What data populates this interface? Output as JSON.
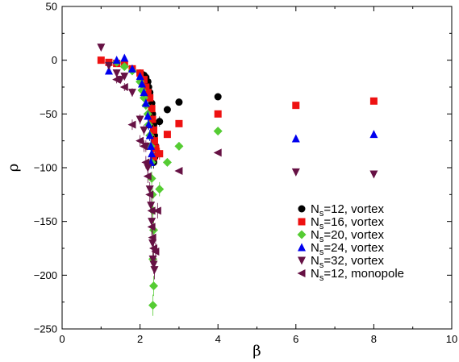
{
  "chart_data": {
    "type": "scatter",
    "xlabel": "β",
    "ylabel": "ρ",
    "xlim": [
      0,
      10
    ],
    "ylim": [
      -250,
      50
    ],
    "xticks": [
      0,
      2,
      4,
      6,
      8,
      10
    ],
    "yticks": [
      50,
      0,
      -50,
      -100,
      -150,
      -200,
      -250
    ],
    "xtick_labels": [
      "0",
      "2",
      "4",
      "6",
      "8",
      "10"
    ],
    "ytick_labels": [
      "50",
      "0",
      "−50",
      "−100",
      "−150",
      "−200",
      "−250"
    ],
    "legend_position": "right-middle",
    "series": [
      {
        "name": "N_s=12, vortex",
        "legend_label": {
          "main": "N",
          "sub": "s",
          "rest": "=12, vortex"
        },
        "marker": "circle",
        "color": "#000000",
        "points": [
          [
            2.0,
            -12
          ],
          [
            2.05,
            -13
          ],
          [
            2.1,
            -14
          ],
          [
            2.15,
            -16
          ],
          [
            2.2,
            -20
          ],
          [
            2.22,
            -25
          ],
          [
            2.25,
            -30
          ],
          [
            2.3,
            -40
          ],
          [
            2.32,
            -50
          ],
          [
            2.35,
            -60
          ],
          [
            2.37,
            -70
          ],
          [
            2.4,
            -80
          ],
          [
            2.38,
            -90
          ],
          [
            2.35,
            -95
          ],
          [
            2.5,
            -57
          ],
          [
            2.7,
            -46
          ],
          [
            3.0,
            -39
          ],
          [
            4.0,
            -34
          ]
        ]
      },
      {
        "name": "N_s=16, vortex",
        "legend_label": {
          "main": "N",
          "sub": "s",
          "rest": "=16, vortex"
        },
        "marker": "square",
        "color": "#ee1111",
        "points": [
          [
            1.0,
            0
          ],
          [
            1.2,
            -2
          ],
          [
            1.4,
            -3
          ],
          [
            1.6,
            -4
          ],
          [
            1.8,
            -8
          ],
          [
            2.0,
            -12
          ],
          [
            2.1,
            -18
          ],
          [
            2.15,
            -25
          ],
          [
            2.2,
            -30
          ],
          [
            2.25,
            -35
          ],
          [
            2.3,
            -45
          ],
          [
            2.32,
            -55
          ],
          [
            2.35,
            -65
          ],
          [
            2.37,
            -75
          ],
          [
            2.4,
            -82
          ],
          [
            2.35,
            -90
          ],
          [
            2.5,
            -87
          ],
          [
            2.7,
            -69
          ],
          [
            3.0,
            -59
          ],
          [
            4.0,
            -50
          ],
          [
            6.0,
            -42
          ],
          [
            8.0,
            -38
          ]
        ]
      },
      {
        "name": "N_s=20, vortex",
        "legend_label": {
          "main": "N",
          "sub": "s",
          "rest": "=20, vortex"
        },
        "marker": "diamond",
        "color": "#55cc33",
        "points": [
          [
            1.4,
            -2
          ],
          [
            1.6,
            -6
          ],
          [
            1.8,
            -10
          ],
          [
            2.0,
            -20
          ],
          [
            2.05,
            -28
          ],
          [
            2.1,
            -35
          ],
          [
            2.15,
            -42
          ],
          [
            2.2,
            -50
          ],
          [
            2.22,
            -60
          ],
          [
            2.25,
            -70
          ],
          [
            2.28,
            -80
          ],
          [
            2.3,
            -95
          ],
          [
            2.3,
            -110
          ],
          [
            2.32,
            -125
          ],
          [
            2.33,
            -140
          ],
          [
            2.35,
            -158
          ],
          [
            2.33,
            -185
          ],
          [
            2.35,
            -210
          ],
          [
            2.33,
            -228
          ],
          [
            2.5,
            -120
          ],
          [
            2.7,
            -95
          ],
          [
            3.0,
            -80
          ],
          [
            4.0,
            -66
          ]
        ]
      },
      {
        "name": "N_s=24, vortex",
        "legend_label": {
          "main": "N",
          "sub": "s",
          "rest": "=24, vortex"
        },
        "marker": "triangle-up",
        "color": "#0000ee",
        "points": [
          [
            1.2,
            -10
          ],
          [
            1.4,
            0
          ],
          [
            1.6,
            2
          ],
          [
            1.8,
            -8
          ],
          [
            2.0,
            -15
          ],
          [
            2.05,
            -22
          ],
          [
            2.1,
            -30
          ],
          [
            2.15,
            -40
          ],
          [
            2.2,
            -52
          ],
          [
            2.22,
            -60
          ],
          [
            2.25,
            -70
          ],
          [
            2.28,
            -80
          ],
          [
            2.3,
            -87
          ],
          [
            2.28,
            -95
          ],
          [
            6.0,
            -73
          ],
          [
            8.0,
            -69
          ]
        ]
      },
      {
        "name": "N_s=32, vortex",
        "legend_label": {
          "main": "N",
          "sub": "s",
          "rest": "=32, vortex"
        },
        "marker": "triangle-down",
        "color": "#661144",
        "points": [
          [
            1.0,
            12
          ],
          [
            1.2,
            -5
          ],
          [
            1.4,
            -12
          ],
          [
            1.5,
            -18
          ],
          [
            1.6,
            -15
          ],
          [
            1.8,
            -30
          ],
          [
            2.0,
            -55
          ],
          [
            2.1,
            -65
          ],
          [
            2.15,
            -80
          ],
          [
            2.2,
            -100
          ],
          [
            2.25,
            -120
          ],
          [
            2.28,
            -135
          ],
          [
            2.3,
            -150
          ],
          [
            2.32,
            -170
          ],
          [
            2.33,
            -185
          ],
          [
            2.35,
            -190
          ],
          [
            2.37,
            -195
          ],
          [
            6.0,
            -104
          ],
          [
            8.0,
            -106
          ]
        ]
      },
      {
        "name": "N_s=12, monopole",
        "legend_label": {
          "main": "N",
          "sub": "s",
          "rest": "=12, monopole"
        },
        "marker": "triangle-left",
        "color": "#661144",
        "points": [
          [
            1.4,
            -18
          ],
          [
            1.6,
            -25
          ],
          [
            1.8,
            -60
          ],
          [
            2.0,
            -75
          ],
          [
            2.1,
            -80
          ],
          [
            2.15,
            -95
          ],
          [
            2.2,
            -108
          ],
          [
            2.25,
            -125
          ],
          [
            2.3,
            -140
          ],
          [
            2.3,
            -155
          ],
          [
            2.32,
            -165
          ],
          [
            2.35,
            -175
          ],
          [
            2.4,
            -178
          ],
          [
            2.45,
            -140
          ],
          [
            3.0,
            -103
          ],
          [
            4.0,
            -86
          ]
        ]
      }
    ]
  }
}
